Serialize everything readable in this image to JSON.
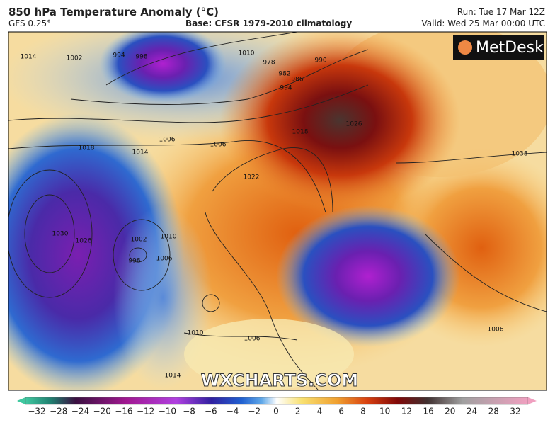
{
  "header": {
    "title": "850 hPa Temperature Anomaly (°C)",
    "model": "GFS 0.25°",
    "base": "Base: CFSR 1979-2010 climatology",
    "run": "Run: Tue 17 Mar 12Z",
    "valid": "Valid: Wed 25 Mar 00:00 UTC"
  },
  "logo": "MetDesk",
  "watermark": "WXCHARTS.COM",
  "isobar_labels": [
    "1014",
    "1002",
    "994",
    "998",
    "1006",
    "1018",
    "1014",
    "1006",
    "1010",
    "978",
    "982",
    "986",
    "990",
    "994",
    "1018",
    "1022",
    "1026",
    "1030",
    "1026",
    "1002",
    "998",
    "1010",
    "1006",
    "1010",
    "1006",
    "1014",
    "1038",
    "1006"
  ],
  "colorbar": {
    "ticks": [
      "−32",
      "−28",
      "−24",
      "−20",
      "−16",
      "−12",
      "−10",
      "−8",
      "−6",
      "−4",
      "−2",
      "0",
      "2",
      "4",
      "6",
      "8",
      "10",
      "12",
      "16",
      "20",
      "24",
      "28",
      "32"
    ]
  }
}
